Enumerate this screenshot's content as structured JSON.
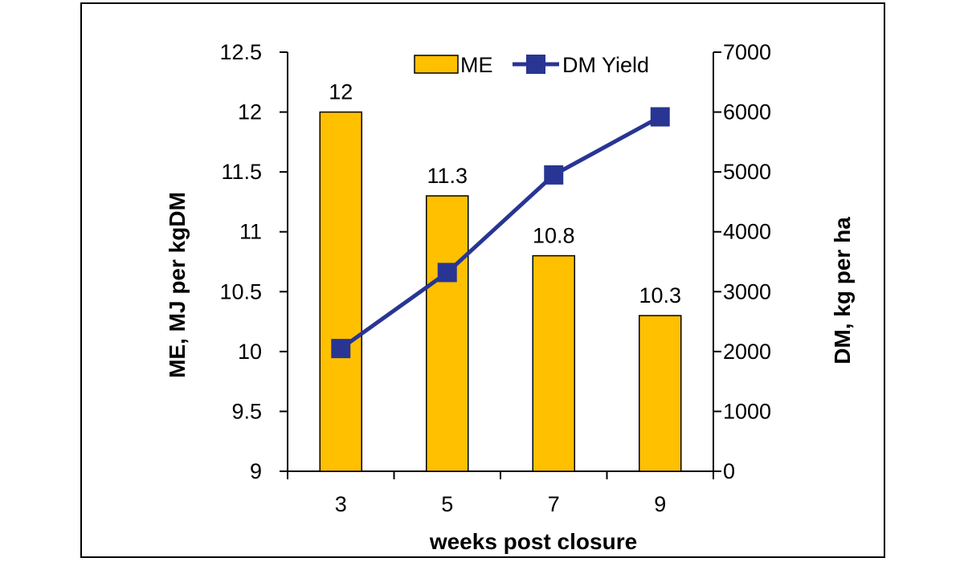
{
  "chart_data": {
    "type": "bar",
    "categories": [
      "3",
      "5",
      "7",
      "9"
    ],
    "xlabel": "weeks post closure",
    "ylabel": "ME, MJ per kgDM",
    "y2label": "DM, kg per ha",
    "ylim": [
      9,
      12.5
    ],
    "y2lim": [
      0,
      7000
    ],
    "yticks": [
      "9",
      "9.5",
      "10",
      "10.5",
      "11",
      "11.5",
      "12",
      "12.5"
    ],
    "y2ticks": [
      "0",
      "1000",
      "2000",
      "3000",
      "4000",
      "5000",
      "6000",
      "7000"
    ],
    "grid": false,
    "legend_position": "top-right",
    "series": [
      {
        "name": "ME",
        "kind": "bar",
        "axis": "left",
        "color": "#FFC000",
        "values": [
          12,
          11.3,
          10.8,
          10.3
        ],
        "labels": [
          "12",
          "11.3",
          "10.8",
          "10.3"
        ]
      },
      {
        "name": "DM Yield",
        "kind": "line",
        "axis": "right",
        "color": "#283593",
        "marker": "square",
        "values": [
          2050,
          3320,
          4950,
          5920
        ]
      }
    ]
  }
}
